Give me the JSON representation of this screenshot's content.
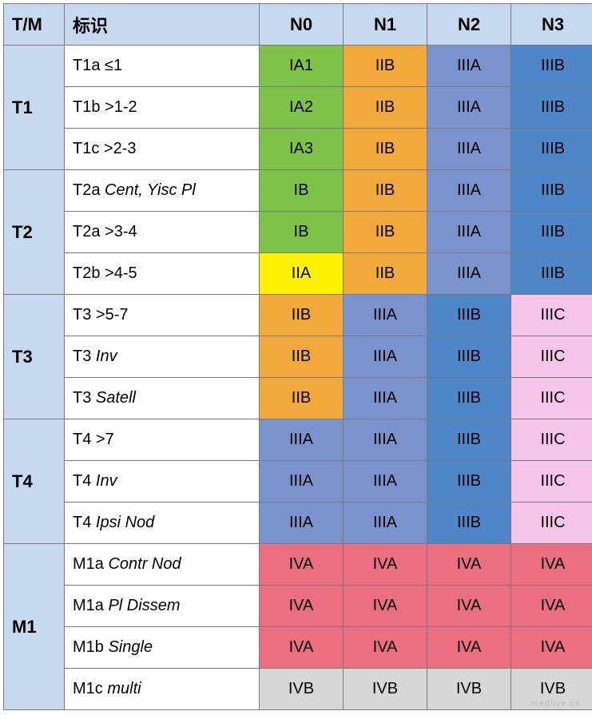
{
  "headers": {
    "tm": "T/M",
    "label": "标识",
    "n0": "N0",
    "n1": "N1",
    "n2": "N2",
    "n3": "N3"
  },
  "colors": {
    "header_bg": "#c7d9ef",
    "green": "#7ec24a",
    "orange": "#f2a93c",
    "blue_med": "#7b93cc",
    "blue_strong": "#4f86c7",
    "yellow": "#fff200",
    "pink": "#f5c5ea",
    "red": "#ec6f81",
    "grey": "#d7d7d7",
    "white": "#ffffff"
  },
  "tm_groups": [
    {
      "label": "T1",
      "span": 3
    },
    {
      "label": "T2",
      "span": 3
    },
    {
      "label": "T3",
      "span": 3
    },
    {
      "label": "T4",
      "span": 3
    },
    {
      "label": "M1",
      "span": 4
    }
  ],
  "rows": [
    {
      "label_plain": "T1a ≤1",
      "label_italic": "",
      "cells": [
        {
          "t": "IA1",
          "c": "green"
        },
        {
          "t": "IIB",
          "c": "orange"
        },
        {
          "t": "IIIA",
          "c": "blue_med"
        },
        {
          "t": "IIIB",
          "c": "blue_strong"
        }
      ]
    },
    {
      "label_plain": "T1b >1-2",
      "label_italic": "",
      "cells": [
        {
          "t": "IA2",
          "c": "green"
        },
        {
          "t": "IIB",
          "c": "orange"
        },
        {
          "t": "IIIA",
          "c": "blue_med"
        },
        {
          "t": "IIIB",
          "c": "blue_strong"
        }
      ]
    },
    {
      "label_plain": "T1c >2-3",
      "label_italic": "",
      "cells": [
        {
          "t": "IA3",
          "c": "green"
        },
        {
          "t": "IIB",
          "c": "orange"
        },
        {
          "t": "IIIA",
          "c": "blue_med"
        },
        {
          "t": "IIIB",
          "c": "blue_strong"
        }
      ]
    },
    {
      "label_plain": "T2a ",
      "label_italic": "Cent, Yisc Pl",
      "cells": [
        {
          "t": "IB",
          "c": "green"
        },
        {
          "t": "IIB",
          "c": "orange"
        },
        {
          "t": "IIIA",
          "c": "blue_med"
        },
        {
          "t": "IIIB",
          "c": "blue_strong"
        }
      ]
    },
    {
      "label_plain": "T2a >3-4",
      "label_italic": "",
      "cells": [
        {
          "t": "IB",
          "c": "green"
        },
        {
          "t": "IIB",
          "c": "orange"
        },
        {
          "t": "IIIA",
          "c": "blue_med"
        },
        {
          "t": "IIIB",
          "c": "blue_strong"
        }
      ]
    },
    {
      "label_plain": "T2b >4-5",
      "label_italic": "",
      "cells": [
        {
          "t": "IIA",
          "c": "yellow"
        },
        {
          "t": "IIB",
          "c": "orange"
        },
        {
          "t": "IIIA",
          "c": "blue_med"
        },
        {
          "t": "IIIB",
          "c": "blue_strong"
        }
      ]
    },
    {
      "label_plain": "T3 >5-7",
      "label_italic": "",
      "cells": [
        {
          "t": "IIB",
          "c": "orange"
        },
        {
          "t": "IIIA",
          "c": "blue_med"
        },
        {
          "t": "IIIB",
          "c": "blue_strong"
        },
        {
          "t": "IIIC",
          "c": "pink"
        }
      ]
    },
    {
      "label_plain": "T3 ",
      "label_italic": "Inv",
      "cells": [
        {
          "t": "IIB",
          "c": "orange"
        },
        {
          "t": "IIIA",
          "c": "blue_med"
        },
        {
          "t": "IIIB",
          "c": "blue_strong"
        },
        {
          "t": "IIIC",
          "c": "pink"
        }
      ]
    },
    {
      "label_plain": "T3 ",
      "label_italic": "Satell",
      "cells": [
        {
          "t": "IIB",
          "c": "orange"
        },
        {
          "t": "IIIA",
          "c": "blue_med"
        },
        {
          "t": "IIIB",
          "c": "blue_strong"
        },
        {
          "t": "IIIC",
          "c": "pink"
        }
      ]
    },
    {
      "label_plain": "T4 >7",
      "label_italic": "",
      "cells": [
        {
          "t": "IIIA",
          "c": "blue_med"
        },
        {
          "t": "IIIA",
          "c": "blue_med"
        },
        {
          "t": "IIIB",
          "c": "blue_strong"
        },
        {
          "t": "IIIC",
          "c": "pink"
        }
      ]
    },
    {
      "label_plain": "T4 ",
      "label_italic": "Inv",
      "cells": [
        {
          "t": "IIIA",
          "c": "blue_med"
        },
        {
          "t": "IIIA",
          "c": "blue_med"
        },
        {
          "t": "IIIB",
          "c": "blue_strong"
        },
        {
          "t": "IIIC",
          "c": "pink"
        }
      ]
    },
    {
      "label_plain": "T4 ",
      "label_italic": "Ipsi Nod",
      "cells": [
        {
          "t": "IIIA",
          "c": "blue_med"
        },
        {
          "t": "IIIA",
          "c": "blue_med"
        },
        {
          "t": "IIIB",
          "c": "blue_strong"
        },
        {
          "t": "IIIC",
          "c": "pink"
        }
      ]
    },
    {
      "label_plain": "M1a ",
      "label_italic": "Contr Nod",
      "cells": [
        {
          "t": "IVA",
          "c": "red"
        },
        {
          "t": "IVA",
          "c": "red"
        },
        {
          "t": "IVA",
          "c": "red"
        },
        {
          "t": "IVA",
          "c": "red"
        }
      ]
    },
    {
      "label_plain": "M1a ",
      "label_italic": "Pl Dissem",
      "cells": [
        {
          "t": "IVA",
          "c": "red"
        },
        {
          "t": "IVA",
          "c": "red"
        },
        {
          "t": "IVA",
          "c": "red"
        },
        {
          "t": "IVA",
          "c": "red"
        }
      ]
    },
    {
      "label_plain": "M1b ",
      "label_italic": "Single",
      "cells": [
        {
          "t": "IVA",
          "c": "red"
        },
        {
          "t": "IVA",
          "c": "red"
        },
        {
          "t": "IVA",
          "c": "red"
        },
        {
          "t": "IVA",
          "c": "red"
        }
      ]
    },
    {
      "label_plain": "M1c ",
      "label_italic": "multi",
      "cells": [
        {
          "t": "IVB",
          "c": "grey"
        },
        {
          "t": "IVB",
          "c": "grey"
        },
        {
          "t": "IVB",
          "c": "grey"
        },
        {
          "t": "IVB",
          "c": "grey"
        }
      ]
    }
  ],
  "watermark": "medlive.cn"
}
